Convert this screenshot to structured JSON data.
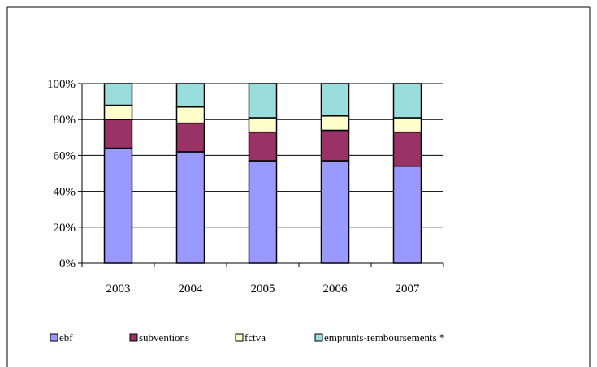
{
  "chart_data": {
    "type": "bar",
    "stacked": true,
    "percent": true,
    "categories": [
      "2003",
      "2004",
      "2005",
      "2006",
      "2007"
    ],
    "series": [
      {
        "name": "ebf",
        "color": "#9999ff",
        "values": [
          64,
          62,
          57,
          57,
          54
        ]
      },
      {
        "name": "subventions",
        "color": "#993366",
        "values": [
          16,
          16,
          16,
          17,
          19
        ]
      },
      {
        "name": "fctva",
        "color": "#ffffcc",
        "values": [
          8,
          9,
          8,
          8,
          8
        ]
      },
      {
        "name": "emprunts-remboursements *",
        "color": "#99dddd",
        "values": [
          12,
          13,
          19,
          18,
          19
        ]
      }
    ],
    "ylim": [
      0,
      100
    ],
    "yticks": [
      "0%",
      "20%",
      "40%",
      "60%",
      "80%",
      "100%"
    ],
    "grid": true,
    "legend_position": "bottom"
  }
}
